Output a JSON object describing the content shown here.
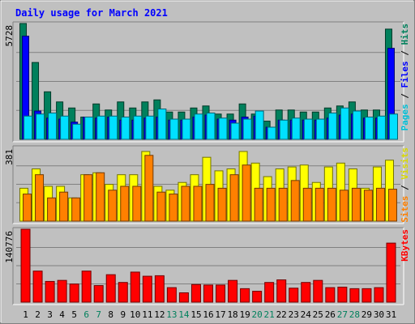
{
  "chart_data": {
    "type": "bar",
    "title": "Daily usage for March 2021",
    "categories": [
      "1",
      "2",
      "3",
      "4",
      "5",
      "6",
      "7",
      "8",
      "9",
      "10",
      "11",
      "12",
      "13",
      "14",
      "15",
      "16",
      "17",
      "18",
      "19",
      "20",
      "21",
      "22",
      "23",
      "24",
      "25",
      "26",
      "27",
      "28",
      "29",
      "30",
      "31"
    ],
    "weekend_days": [
      "6",
      "7",
      "13",
      "14",
      "20",
      "21",
      "27",
      "28"
    ],
    "panels": [
      {
        "max_label": "5728",
        "ymax": 5728,
        "right_label_parts": [
          "Pages",
          "Files",
          "Hits"
        ],
        "series": [
          {
            "name": "Hits",
            "color": "#00805c",
            "values": [
              5728,
              3800,
              2350,
              1850,
              1550,
              1100,
              1750,
              1450,
              1850,
              1550,
              1850,
              1950,
              1350,
              1350,
              1550,
              1650,
              1250,
              1250,
              1750,
              1250,
              900,
              1450,
              1450,
              1350,
              1350,
              1550,
              1650,
              1850,
              1450,
              1450,
              5450
            ]
          },
          {
            "name": "Files",
            "color": "#0000ff",
            "values": [
              5100,
              1400,
              1050,
              1000,
              850,
              1100,
              1050,
              1100,
              950,
              950,
              1050,
              1100,
              950,
              950,
              1100,
              1200,
              1000,
              950,
              1100,
              1150,
              600,
              950,
              950,
              950,
              950,
              1050,
              1200,
              1250,
              1050,
              1050,
              4500
            ]
          },
          {
            "name": "Pages",
            "color": "#00e0ff",
            "values": [
              1150,
              1250,
              1300,
              1150,
              750,
              1100,
              1150,
              1150,
              1100,
              1150,
              1150,
              1500,
              1000,
              1000,
              1250,
              1300,
              1050,
              800,
              1000,
              1400,
              600,
              950,
              1050,
              1000,
              1000,
              1300,
              1550,
              1400,
              1100,
              1150,
              1250
            ]
          }
        ]
      },
      {
        "max_label": "381",
        "ymax": 381,
        "right_label_parts": [
          "Sites",
          "Visits"
        ],
        "series": [
          {
            "name": "Visits",
            "color": "#ffff00",
            "values": [
              170,
              270,
              180,
              180,
              120,
              240,
              250,
              190,
              240,
              240,
              360,
              180,
              160,
              200,
              240,
              330,
              260,
              270,
              360,
              300,
              230,
              270,
              280,
              290,
              200,
              280,
              300,
              270,
              170,
              280,
              315
            ]
          },
          {
            "name": "Sites",
            "color": "#ff8000",
            "values": [
              140,
              240,
              120,
              150,
              120,
              240,
              250,
              160,
              180,
              180,
              340,
              150,
              140,
              180,
              180,
              190,
              170,
              240,
              290,
              170,
              170,
              170,
              210,
              170,
              170,
              170,
              160,
              170,
              160,
              170,
              165
            ]
          }
        ]
      },
      {
        "max_label": "140776",
        "ymax": 140776,
        "right_label_parts": [
          "KBytes"
        ],
        "series": [
          {
            "name": "KBytes",
            "color": "#ff0000",
            "values": [
              140776,
              60000,
              40000,
              42000,
              35000,
              60000,
              32000,
              53000,
              38000,
              58000,
              50000,
              51000,
              28000,
              18000,
              34000,
              33000,
              33000,
              42000,
              26000,
              21000,
              38000,
              43000,
              27000,
              38000,
              42000,
              28000,
              29000,
              26000,
              26000,
              28000,
              114000
            ]
          }
        ]
      }
    ]
  }
}
